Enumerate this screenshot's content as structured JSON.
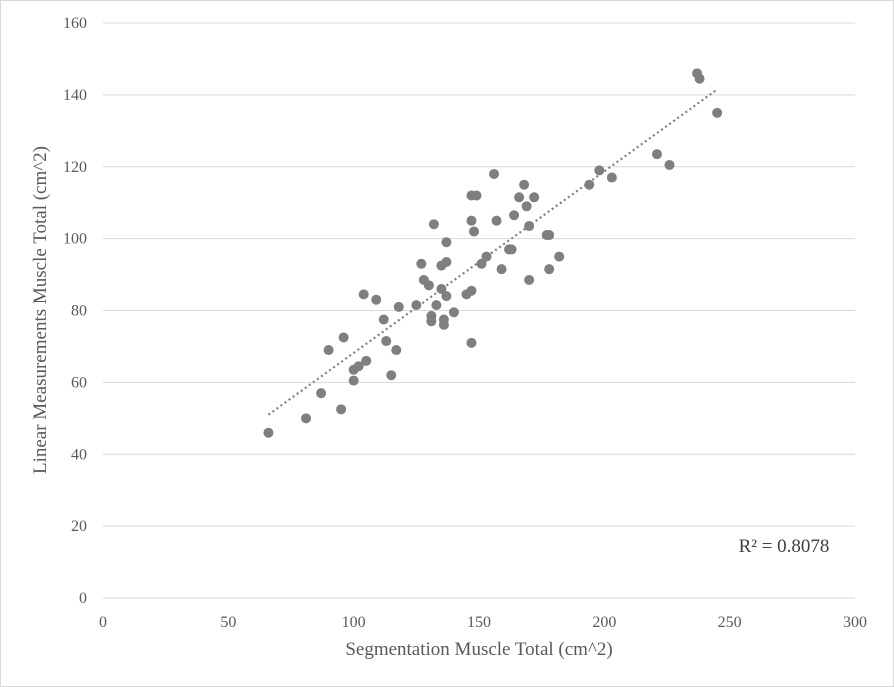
{
  "chart_data": {
    "type": "scatter",
    "title": "",
    "xlabel": "Segmentation Muscle Total (cm^2)",
    "ylabel": "Linear Measurements Muscle Total (cm^2)",
    "xlim": [
      0,
      300
    ],
    "ylim": [
      0,
      160
    ],
    "x_ticks": [
      "0",
      "50",
      "100",
      "150",
      "200",
      "250",
      "300"
    ],
    "y_ticks": [
      "0",
      "20",
      "40",
      "60",
      "80",
      "100",
      "120",
      "140",
      "160"
    ],
    "grid": "horizontal",
    "legend": "none",
    "point_color": "#7f7f7f",
    "trendline": {
      "type": "linear",
      "style": "dotted",
      "color": "#7f7f7f",
      "x_start": 66,
      "x_end": 245,
      "y_start": 51,
      "y_end": 141.5
    },
    "r_squared_label": "R² = 0.8078",
    "points": [
      [
        66,
        46
      ],
      [
        81,
        50
      ],
      [
        87,
        57
      ],
      [
        90,
        69
      ],
      [
        95,
        52.5
      ],
      [
        96,
        72.5
      ],
      [
        100,
        63.5
      ],
      [
        100,
        60.5
      ],
      [
        102,
        64.5
      ],
      [
        104,
        84.5
      ],
      [
        105,
        66
      ],
      [
        109,
        83
      ],
      [
        112,
        77.5
      ],
      [
        113,
        71.5
      ],
      [
        115,
        62
      ],
      [
        117,
        69
      ],
      [
        118,
        81
      ],
      [
        125,
        81.5
      ],
      [
        127,
        93
      ],
      [
        128,
        88.5
      ],
      [
        130,
        87
      ],
      [
        131,
        78.5
      ],
      [
        131,
        77
      ],
      [
        132,
        104
      ],
      [
        133,
        81.5
      ],
      [
        135,
        92.5
      ],
      [
        135,
        86
      ],
      [
        136,
        77.5
      ],
      [
        136,
        76
      ],
      [
        137,
        84
      ],
      [
        137,
        99
      ],
      [
        137,
        93.5
      ],
      [
        140,
        79.5
      ],
      [
        145,
        84.5
      ],
      [
        147,
        85.5
      ],
      [
        147,
        71
      ],
      [
        147,
        105
      ],
      [
        147,
        112
      ],
      [
        148,
        102
      ],
      [
        149,
        112
      ],
      [
        151,
        93
      ],
      [
        153,
        95
      ],
      [
        156,
        118
      ],
      [
        157,
        105
      ],
      [
        159,
        91.5
      ],
      [
        162,
        97
      ],
      [
        163,
        97
      ],
      [
        164,
        106.5
      ],
      [
        166,
        111.5
      ],
      [
        168,
        115
      ],
      [
        169,
        109
      ],
      [
        170,
        103.5
      ],
      [
        170,
        88.5
      ],
      [
        172,
        111.5
      ],
      [
        177,
        101
      ],
      [
        178,
        101
      ],
      [
        178,
        91.5
      ],
      [
        182,
        95
      ],
      [
        194,
        115
      ],
      [
        198,
        119
      ],
      [
        203,
        117
      ],
      [
        221,
        123.5
      ],
      [
        226,
        120.5
      ],
      [
        237,
        146
      ],
      [
        238,
        144.5
      ],
      [
        245,
        135
      ]
    ]
  }
}
